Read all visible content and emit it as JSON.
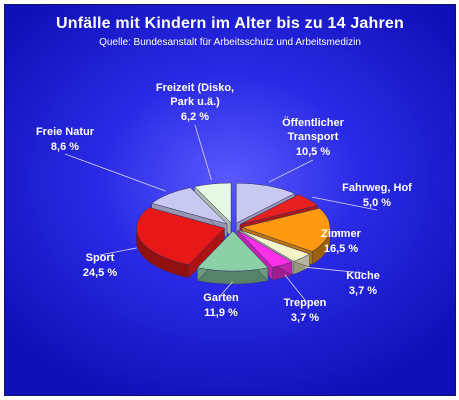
{
  "chart_data": {
    "type": "pie",
    "title": "Unfälle mit Kindern im Alter bis zu 14 Jahren",
    "subtitle": "Quelle: Bundesanstalt für Arbeitsschutz und Arbeitsmedizin",
    "slices": [
      {
        "label": "Öffentlicher Transport",
        "label_lines": [
          "Öffentlicher",
          "Transport"
        ],
        "value": 10.5,
        "value_text": "10,5 %",
        "color": "#c8c8f0"
      },
      {
        "label": "Fahrweg, Hof",
        "label_lines": [
          "Fahrweg, Hof"
        ],
        "value": 5.0,
        "value_text": "5,0 %",
        "color": "#e82020"
      },
      {
        "label": "Zimmer",
        "label_lines": [
          "Zimmer"
        ],
        "value": 16.5,
        "value_text": "16,5 %",
        "color": "#ff9a10"
      },
      {
        "label": "Küche",
        "label_lines": [
          "Küche"
        ],
        "value": 3.7,
        "value_text": "3,7 %",
        "color": "#f4f4c8"
      },
      {
        "label": "Treppen",
        "label_lines": [
          "Treppen"
        ],
        "value": 3.7,
        "value_text": "3,7 %",
        "color": "#ff30e8"
      },
      {
        "label": "Garten",
        "label_lines": [
          "Garten"
        ],
        "value": 11.9,
        "value_text": "11,9 %",
        "color": "#8cd0a8"
      },
      {
        "label": "Sport",
        "label_lines": [
          "Sport"
        ],
        "value": 24.5,
        "value_text": "24,5 %",
        "color": "#e81818"
      },
      {
        "label": "Freie Natur",
        "label_lines": [
          "Freie Natur"
        ],
        "value": 8.6,
        "value_text": "8,6 %",
        "color": "#c8c8f0"
      },
      {
        "label": "Freizeit (Disko, Park u.ä.)",
        "label_lines": [
          "Freizeit (Disko,",
          "Park u.ä.)"
        ],
        "value": 6.2,
        "value_text": "6,2 %",
        "color": "#e4f8e4"
      }
    ]
  }
}
